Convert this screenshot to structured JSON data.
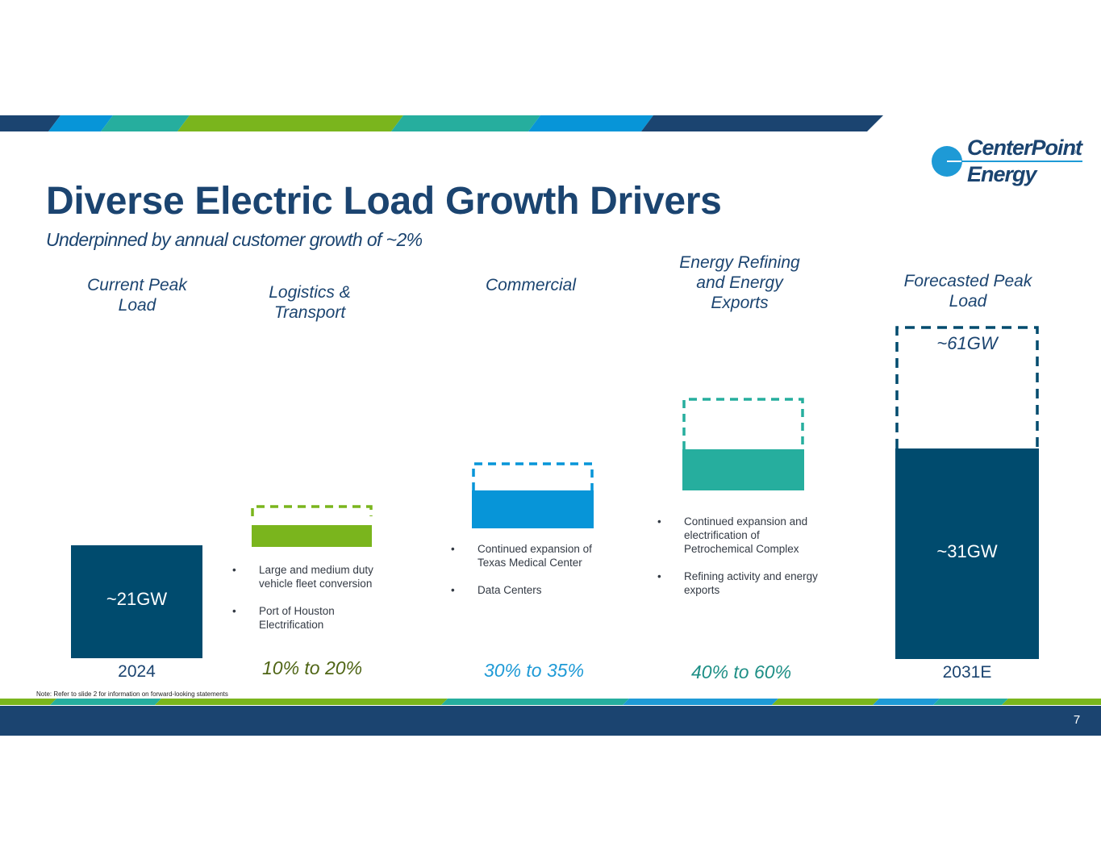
{
  "slide": {
    "title": "Diverse Electric Load Growth Drivers",
    "subtitle": "Underpinned by annual customer growth of ~2%",
    "note": "Note: Refer to slide 2 for information on forward-looking statements",
    "page_number": "7"
  },
  "logo": {
    "line1": "CenterPoint",
    "line2": "Energy",
    "mark": "®"
  },
  "chart_data": {
    "type": "bar",
    "title": "Diverse Electric Load Growth Drivers",
    "categories": [
      "Current Peak\nLoad",
      "Logistics &\nTransport",
      "Commercial",
      "Energy Refining\nand Energy\nExports",
      "Forecasted Peak\nLoad"
    ],
    "values_gw": [
      21,
      31
    ],
    "years": [
      "2024",
      "2031E"
    ],
    "bar_labels": [
      "~21GW",
      "~31GW"
    ],
    "forecast_label": "~61GW",
    "forecast_value_gw": 61,
    "growth_ranges": [
      "10% to 20%",
      "30% to 35%",
      "40% to 60%"
    ],
    "bullets": {
      "logistics": [
        "Large and medium duty vehicle fleet conversion",
        "Port of Houston Electrification"
      ],
      "commercial": [
        "Continued expansion of Texas Medical Center",
        "Data Centers"
      ],
      "refining": [
        "Continued expansion and electrification of Petrochemical Complex",
        "Refining activity and energy exports"
      ]
    }
  },
  "colors": {
    "navy": "#004b6e",
    "dark_blue": "#1b4470",
    "green": "#7ab51d",
    "light_blue": "#0795d8",
    "teal": "#26ae9e",
    "olive": "#4f6515",
    "pct_blue": "#1e9ad6",
    "pct_teal": "#1e8f86"
  }
}
